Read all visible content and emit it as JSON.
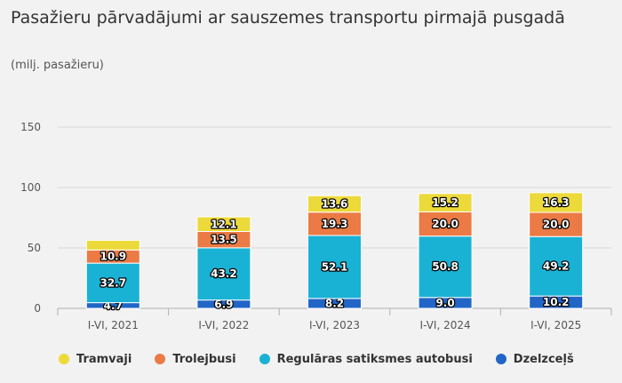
{
  "title": "Pasažieru pārvadājumi ar sauszemes transportu pirmajā pusgadā",
  "subtitle": "(milj. pasažieru)",
  "chart_data": {
    "type": "bar",
    "stacked": true,
    "categories": [
      "I-VI, 2021",
      "I-VI, 2022",
      "I-VI, 2023",
      "I-VI, 2024",
      "I-VI, 2025"
    ],
    "ylim": [
      0,
      160
    ],
    "yticks": [
      "0",
      "50",
      "100",
      "150"
    ],
    "ytick_values": [
      0,
      50,
      100,
      150
    ],
    "grid": true,
    "legend_position": "bottom",
    "series": [
      {
        "name": "Dzelzceļš",
        "color": "#2166c7",
        "values": [
          4.7,
          6.9,
          8.2,
          9.0,
          10.2
        ],
        "labels": [
          "4.7",
          "6.9",
          "8.2",
          "9.0",
          "10.2"
        ]
      },
      {
        "name": "Regulāras satiksmes autobusi",
        "color": "#1ab2d4",
        "values": [
          32.7,
          43.2,
          52.1,
          50.8,
          49.2
        ],
        "labels": [
          "32.7",
          "43.2",
          "52.1",
          "50.8",
          "49.2"
        ]
      },
      {
        "name": "Trolejbusi",
        "color": "#eb7a45",
        "values": [
          10.9,
          13.5,
          19.3,
          20.0,
          20.0
        ],
        "labels": [
          "10.9",
          "13.5",
          "19.3",
          "20.0",
          "20.0"
        ]
      },
      {
        "name": "Tramvaji",
        "color": "#ecd93a",
        "values": [
          8.0,
          12.1,
          13.6,
          15.2,
          16.3
        ],
        "labels": [
          "",
          "12.1",
          "13.6",
          "15.2",
          "16.3"
        ]
      }
    ]
  },
  "legend": [
    {
      "label": "Tramvaji",
      "color": "#ecd93a"
    },
    {
      "label": "Trolejbusi",
      "color": "#eb7a45"
    },
    {
      "label": "Regulāras satiksmes autobusi",
      "color": "#1ab2d4"
    },
    {
      "label": "Dzelzceļš",
      "color": "#2166c7"
    }
  ]
}
